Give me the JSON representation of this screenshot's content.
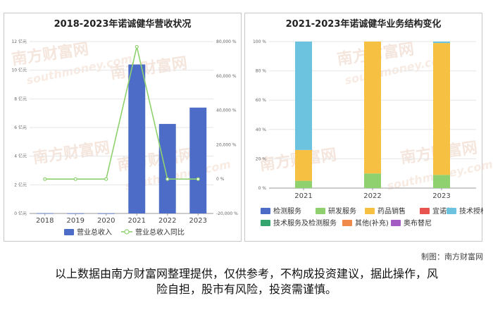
{
  "chart_data": [
    {
      "type": "bar",
      "title": "2018-2023年诺诚健华营收状况",
      "categories": [
        "2018",
        "2019",
        "2020",
        "2021",
        "2022",
        "2023"
      ],
      "ylim": [
        0,
        12
      ],
      "y_ticks": [
        "0 亿元",
        "2 亿元",
        "4 亿元",
        "6 亿元",
        "8 亿元",
        "10 亿元",
        "12 亿元"
      ],
      "y2lim": [
        -20000,
        80000
      ],
      "y2_ticks": [
        "-20,000 %",
        "0 %",
        "20,000 %",
        "40,000 %",
        "60,000 %",
        "80,000 %"
      ],
      "series": [
        {
          "name": "营业总收入",
          "type": "bar",
          "axis": "left",
          "color": "#4c6cc8",
          "values": [
            0.02,
            0.01,
            0.01,
            10.4,
            6.25,
            7.39
          ]
        },
        {
          "name": "营业总收入同比",
          "type": "line",
          "axis": "right",
          "color": "#8fd16e",
          "values": [
            0,
            0,
            0,
            77000,
            0,
            0
          ]
        }
      ],
      "legend_position": "bottom",
      "grid": true
    },
    {
      "type": "bar",
      "stacked": true,
      "title": "2021-2023年诺诚健华业务结构变化",
      "categories": [
        "2021",
        "2022",
        "2023"
      ],
      "ylim": [
        0,
        100
      ],
      "y_ticks": [
        "0 %",
        "20 %",
        "40 %",
        "60 %",
        "80 %",
        "100 %"
      ],
      "series": [
        {
          "name": "检测服务",
          "color": "#4c6cc8",
          "values": [
            0,
            0,
            0
          ]
        },
        {
          "name": "研发服务",
          "color": "#8fd16e",
          "values": [
            5,
            10,
            9
          ]
        },
        {
          "name": "药品销售",
          "color": "#f6c142",
          "values": [
            21,
            90,
            90
          ]
        },
        {
          "name": "宜诺凯",
          "color": "#e8534f",
          "values": [
            0,
            0,
            0
          ]
        },
        {
          "name": "技术授权",
          "color": "#6cc3e0",
          "values": [
            74,
            0,
            1
          ]
        },
        {
          "name": "技术服务及检测服务",
          "color": "#35a56f",
          "values": [
            0,
            0,
            0
          ]
        },
        {
          "name": "其他(补充)",
          "color": "#f08a4b",
          "values": [
            0,
            0,
            0
          ]
        },
        {
          "name": "奥布替尼",
          "color": "#a35dc2",
          "values": [
            0,
            0,
            0
          ]
        }
      ],
      "legend_position": "bottom",
      "grid": true
    }
  ],
  "watermark": {
    "cn": "南方财富网",
    "en": "southmoney.com"
  },
  "credit": "制图：南方财富网",
  "disclaimer_line1": "以上数据由南方财富网整理提供，仅供参考，不构成投资建议，据此操作，风",
  "disclaimer_line2": "险自担，股市有风险，投资需谨慎。"
}
